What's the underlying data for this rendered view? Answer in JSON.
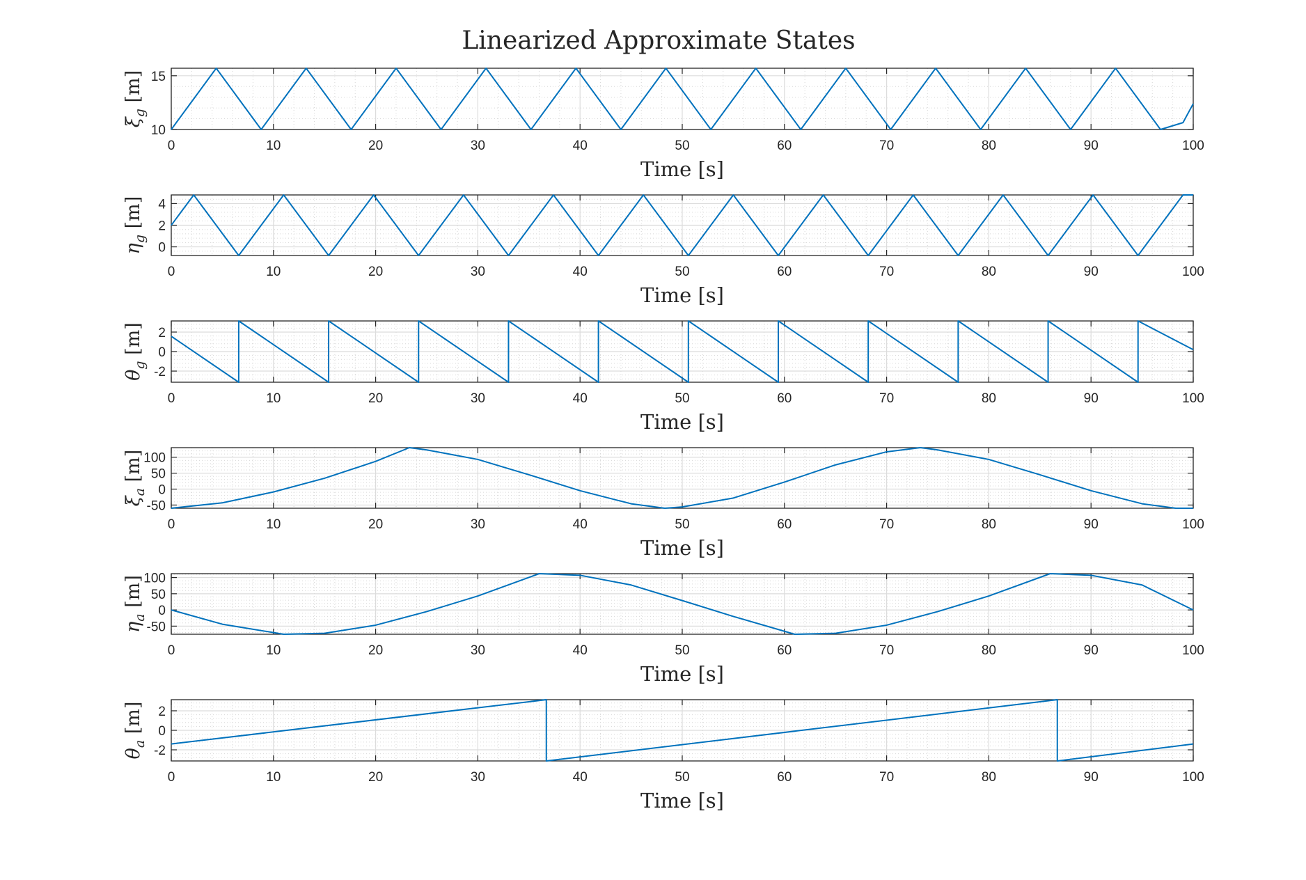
{
  "chart_data": {
    "title": "Linearized Approximate States",
    "type": "line",
    "line_color": "#0072BD",
    "grid": true,
    "minor_grid": true,
    "x_shared": {
      "xlabel": "Time [s]",
      "xlim": [
        0,
        100
      ],
      "xticks": [
        0,
        10,
        20,
        30,
        40,
        50,
        60,
        70,
        80,
        90,
        100
      ]
    },
    "subplots": [
      {
        "id": "xi-g",
        "ylabel_symbol": "ξ",
        "ylabel_sub": "g",
        "ylabel_unit": " [m]",
        "ylim": [
          10,
          15.7
        ],
        "yticks": [
          10,
          15
        ],
        "series": {
          "x": [
            0,
            2.2,
            4.4,
            6.6,
            8.8,
            11.0,
            13.2,
            15.4,
            17.6,
            19.8,
            22.0,
            24.2,
            26.4,
            28.6,
            30.8,
            33.0,
            35.2,
            37.4,
            39.6,
            41.8,
            44.0,
            46.2,
            48.4,
            50.6,
            52.8,
            55.0,
            57.2,
            59.4,
            61.6,
            63.8,
            66.0,
            68.2,
            70.4,
            72.6,
            74.8,
            77.0,
            79.2,
            81.4,
            83.6,
            85.8,
            88.0,
            90.2,
            92.4,
            94.6,
            96.8,
            99.0,
            100
          ],
          "y": [
            10.0,
            12.85,
            15.7,
            12.85,
            10.0,
            12.85,
            15.7,
            12.85,
            10.0,
            12.85,
            15.7,
            12.85,
            10.0,
            12.85,
            15.7,
            12.85,
            10.0,
            12.85,
            15.7,
            12.85,
            10.0,
            12.85,
            15.7,
            12.85,
            10.0,
            12.85,
            15.7,
            12.85,
            10.0,
            12.85,
            15.7,
            12.85,
            10.0,
            12.85,
            15.7,
            12.85,
            10.0,
            12.85,
            15.7,
            12.85,
            10.0,
            12.85,
            15.7,
            12.85,
            10.0,
            10.64,
            12.4
          ]
        }
      },
      {
        "id": "eta-g",
        "ylabel_symbol": "η",
        "ylabel_sub": "g",
        "ylabel_unit": " [m]",
        "ylim": [
          -0.8,
          4.8
        ],
        "yticks": [
          0,
          2,
          4
        ],
        "series": {
          "x": [
            0,
            2.2,
            4.4,
            6.6,
            8.8,
            11.0,
            13.2,
            15.4,
            17.6,
            19.8,
            22.0,
            24.2,
            26.4,
            28.6,
            30.8,
            33.0,
            35.2,
            37.4,
            39.6,
            41.8,
            44.0,
            46.2,
            48.4,
            50.6,
            52.8,
            55.0,
            57.2,
            59.4,
            61.6,
            63.8,
            66.0,
            68.2,
            70.4,
            72.6,
            74.8,
            77.0,
            79.2,
            81.4,
            83.6,
            85.8,
            88.0,
            90.2,
            92.4,
            94.6,
            96.8,
            99.0,
            100
          ],
          "y": [
            2.0,
            4.8,
            2.0,
            -0.8,
            2.0,
            4.8,
            2.0,
            -0.8,
            2.0,
            4.8,
            2.0,
            -0.8,
            2.0,
            4.8,
            2.0,
            -0.8,
            2.0,
            4.8,
            2.0,
            -0.8,
            2.0,
            4.8,
            2.0,
            -0.8,
            2.0,
            4.8,
            2.0,
            -0.8,
            2.0,
            4.8,
            2.0,
            -0.8,
            2.0,
            4.8,
            2.0,
            -0.8,
            2.0,
            4.8,
            2.0,
            -0.8,
            2.0,
            4.8,
            2.0,
            -0.8,
            2.0,
            4.8,
            4.8
          ]
        }
      },
      {
        "id": "theta-g",
        "ylabel_symbol": "θ",
        "ylabel_sub": "g",
        "ylabel_unit": " [m]",
        "ylim": [
          -3.14,
          3.14
        ],
        "yticks": [
          -2,
          0,
          2
        ],
        "series": {
          "x": [
            0,
            6.6,
            6.6,
            15.4,
            15.4,
            24.2,
            24.2,
            33.0,
            33.0,
            41.8,
            41.8,
            50.6,
            50.6,
            59.4,
            59.4,
            68.2,
            68.2,
            77.0,
            77.0,
            85.8,
            85.8,
            94.6,
            94.6,
            100
          ],
          "y": [
            1.57,
            -3.14,
            3.14,
            -3.14,
            3.14,
            -3.14,
            3.14,
            -3.14,
            3.14,
            -3.14,
            3.14,
            -3.14,
            3.14,
            -3.14,
            3.14,
            -3.14,
            3.14,
            -3.14,
            3.14,
            -3.14,
            3.14,
            -3.14,
            3.14,
            0.2
          ]
        }
      },
      {
        "id": "xi-a",
        "ylabel_symbol": "ξ",
        "ylabel_sub": "a",
        "ylabel_unit": " [m]",
        "ylim": [
          -60,
          130
        ],
        "yticks": [
          -50,
          0,
          50,
          100
        ],
        "series": {
          "x": [
            0,
            5,
            10,
            15,
            20,
            23.3,
            25,
            30,
            35,
            40,
            45,
            48.3,
            50,
            55,
            60,
            65,
            70,
            73.3,
            75,
            80,
            85,
            90,
            95,
            98.3,
            100
          ],
          "y": [
            -60,
            -43,
            -9,
            34,
            87,
            130,
            123,
            93,
            45,
            -5,
            -46,
            -60,
            -56,
            -28,
            22,
            76,
            117,
            130,
            123,
            93,
            45,
            -5,
            -46,
            -60,
            -60
          ]
        }
      },
      {
        "id": "eta-a",
        "ylabel_symbol": "η",
        "ylabel_sub": "a",
        "ylabel_unit": " [m]",
        "ylim": [
          -75,
          112
        ],
        "yticks": [
          -50,
          0,
          50,
          100
        ],
        "series": {
          "x": [
            0,
            5,
            11,
            15,
            20,
            25,
            30,
            36,
            40,
            45,
            50,
            55,
            61,
            65,
            70,
            75,
            80,
            86,
            90,
            95,
            100
          ],
          "y": [
            0,
            -44,
            -75,
            -72,
            -47,
            -5,
            43,
            112,
            107,
            77,
            29,
            -20,
            -75,
            -72,
            -47,
            -5,
            43,
            112,
            107,
            77,
            0
          ]
        }
      },
      {
        "id": "theta-a",
        "ylabel_symbol": "θ",
        "ylabel_sub": "a",
        "ylabel_unit": " [m]",
        "ylim": [
          -3.14,
          3.14
        ],
        "yticks": [
          -2,
          0,
          2
        ],
        "series": {
          "x": [
            0,
            36.7,
            36.7,
            86.7,
            86.7,
            100
          ],
          "y": [
            -1.4,
            3.14,
            -3.14,
            3.14,
            -3.14,
            -1.4
          ]
        }
      }
    ]
  }
}
